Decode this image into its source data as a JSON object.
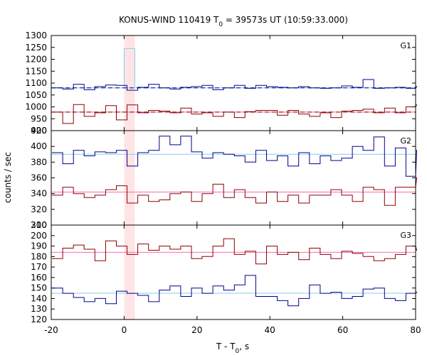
{
  "chart_data": {
    "type": "line",
    "title": {
      "prefix": "KONUS-WIND 110419 T",
      "subscript": "0",
      "suffix": " = 39573s UT (10:59:33.000)"
    },
    "xlabel": {
      "prefix": "T - T",
      "subscript": "0",
      "suffix": ", s"
    },
    "ylabel": "counts / sec",
    "xlim": [
      -20,
      80
    ],
    "x_ticks": [
      -20,
      0,
      20,
      40,
      60,
      80
    ],
    "bin_width_s": 2.944,
    "bin_start_s": -19.8,
    "highlight_interval": [
      0,
      2.944
    ],
    "colors": {
      "blue_series": "#00008b",
      "red_series": "#8b0000",
      "blue_background": "#87ceeb",
      "red_background": "#ff69b4",
      "highlight": "#ffe4e6",
      "highlight_bin": "#87ceeb"
    },
    "panels": [
      {
        "label": "G1",
        "ylim": [
          900,
          1300
        ],
        "y_ticks": [
          900,
          950,
          1000,
          1050,
          1100,
          1150,
          1200,
          1250,
          1300
        ],
        "series": [
          {
            "color_key": "blue_series",
            "background_level": 1080,
            "background_style": "dashed",
            "values": [
              1080,
              1075,
              1095,
              1072,
              1085,
              1092,
              1090,
              1070,
              1082,
              1095,
              1080,
              1075,
              1082,
              1085,
              1090,
              1072,
              1080,
              1090,
              1078,
              1090,
              1085,
              1082,
              1080,
              1085,
              1080,
              1078,
              1080,
              1088,
              1082,
              1115,
              1078,
              1080,
              1082,
              1078,
              1085
            ]
          },
          {
            "color_key": "red_series",
            "background_level": 978,
            "background_style": "dashed",
            "values": [
              978,
              930,
              1010,
              960,
              975,
              1005,
              945,
              1008,
              975,
              985,
              982,
              975,
              995,
              970,
              975,
              960,
              978,
              955,
              980,
              985,
              985,
              965,
              985,
              970,
              960,
              975,
              955,
              982,
              985,
              990,
              975,
              995,
              975,
              1000,
              1008
            ]
          }
        ]
      },
      {
        "label": "G2",
        "ylim": [
          300,
          420
        ],
        "y_ticks": [
          300,
          320,
          340,
          360,
          380,
          400,
          420
        ],
        "series": [
          {
            "color_key": "blue_series",
            "background_level": 390,
            "background_style": "solid",
            "values": [
              392,
              378,
              395,
              388,
              393,
              392,
              395,
              375,
              392,
              395,
              413,
              402,
              413,
              393,
              385,
              392,
              390,
              388,
              380,
              395,
              382,
              388,
              375,
              392,
              378,
              388,
              382,
              385,
              400,
              395,
              412,
              375,
              398,
              362,
              395
            ]
          },
          {
            "color_key": "red_series",
            "background_level": 342,
            "background_style": "solid",
            "values": [
              338,
              348,
              340,
              335,
              338,
              345,
              350,
              328,
              338,
              330,
              332,
              340,
              342,
              330,
              340,
              352,
              335,
              345,
              335,
              328,
              342,
              330,
              338,
              328,
              338,
              338,
              345,
              338,
              330,
              348,
              345,
              325,
              348,
              348,
              360
            ]
          }
        ]
      },
      {
        "label": "G3",
        "ylim": [
          120,
          210
        ],
        "y_ticks": [
          120,
          130,
          140,
          150,
          160,
          170,
          180,
          190,
          200,
          210
        ],
        "series": [
          {
            "color_key": "red_series",
            "background_level": 184,
            "background_style": "solid",
            "values": [
              178,
              188,
              191,
              187,
              176,
              195,
              190,
              182,
              192,
              186,
              190,
              187,
              190,
              178,
              180,
              190,
              197,
              182,
              185,
              173,
              190,
              182,
              184,
              177,
              188,
              182,
              178,
              185,
              183,
              180,
              176,
              178,
              182,
              190,
              186
            ]
          },
          {
            "color_key": "blue_series",
            "background_level": 145,
            "background_style": "solid",
            "values": [
              150,
              145,
              141,
              137,
              140,
              135,
              147,
              145,
              143,
              137,
              148,
              152,
              142,
              150,
              145,
              152,
              148,
              153,
              162,
              142,
              142,
              138,
              133,
              140,
              153,
              145,
              146,
              140,
              142,
              149,
              150,
              140,
              138,
              145,
              146
            ]
          }
        ]
      }
    ]
  }
}
